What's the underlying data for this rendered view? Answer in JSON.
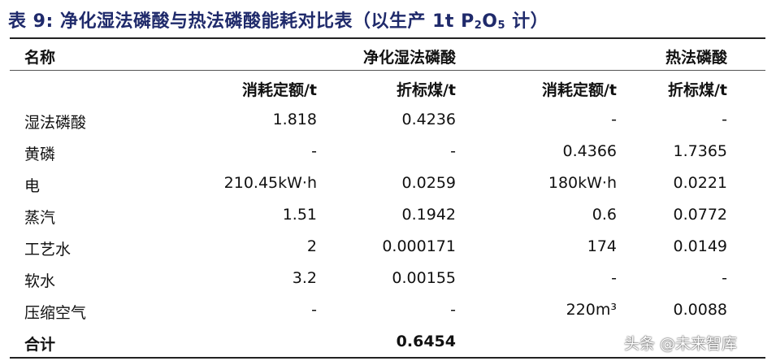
{
  "title": {
    "prefix": "表 9:",
    "main": "净化湿法磷酸与热法磷酸能耗对比表（以生产 1t P",
    "sub1": "2",
    "mid": "O",
    "sub2": "5",
    "suffix": " 计）"
  },
  "table": {
    "name_header": "名称",
    "group_headers": [
      "净化湿法磷酸",
      "热法磷酸"
    ],
    "sub_headers": [
      "消耗定额/t",
      "折标煤/t",
      "消耗定额/t",
      "折标煤/t"
    ],
    "rows": [
      {
        "name": "湿法磷酸",
        "values": [
          "1.818",
          "0.4236",
          "-",
          "-"
        ]
      },
      {
        "name": "黄磷",
        "values": [
          "-",
          "-",
          "0.4366",
          "1.7365"
        ]
      },
      {
        "name": "电",
        "values": [
          "210.45kW·h",
          "0.0259",
          "180kW·h",
          "0.0221"
        ]
      },
      {
        "name": "蒸汽",
        "values": [
          "1.51",
          "0.1942",
          "0.6",
          "0.0772"
        ]
      },
      {
        "name": "工艺水",
        "values": [
          "2",
          "0.000171",
          "174",
          "0.0149"
        ]
      },
      {
        "name": "软水",
        "values": [
          "3.2",
          "0.00155",
          "-",
          "-"
        ]
      },
      {
        "name": "压缩空气",
        "values": [
          "-",
          "-",
          "220m³",
          "0.0088"
        ]
      }
    ],
    "total": {
      "name": "合计",
      "value": "0.6454"
    }
  },
  "watermark": "头条 @未来智库",
  "colors": {
    "title": "#1f2a6b",
    "rule": "#222222"
  }
}
